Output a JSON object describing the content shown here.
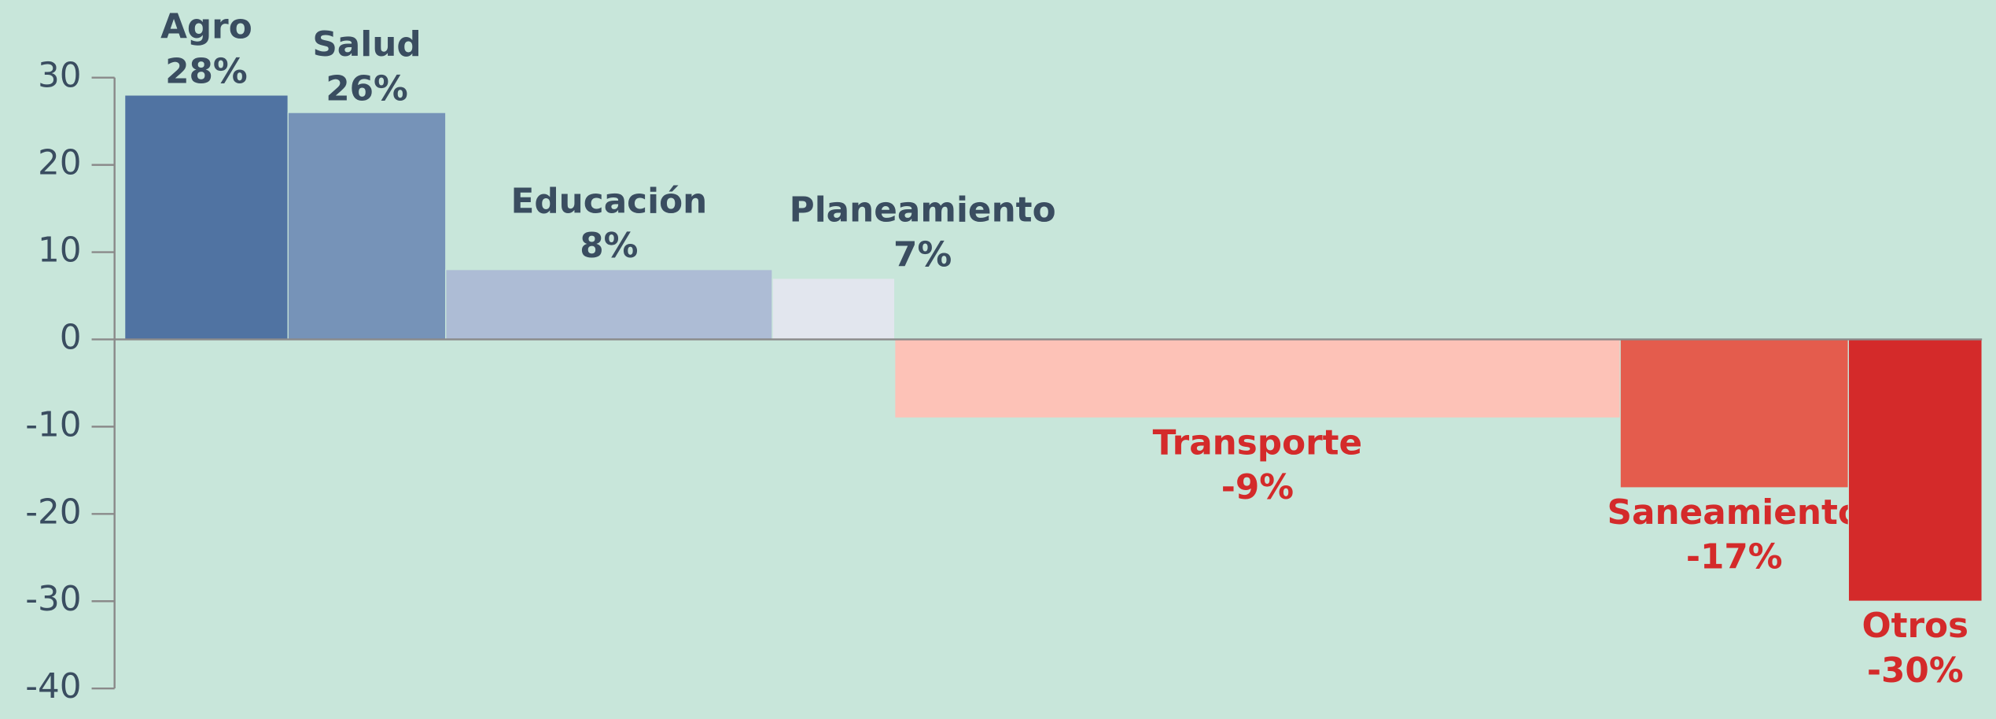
{
  "chart_data": {
    "type": "bar",
    "categories": [
      "Agro",
      "Salud",
      "Educación",
      "Planeamiento",
      "Transporte",
      "Saneamiento",
      "Otros"
    ],
    "values": [
      28,
      26,
      8,
      7,
      -9,
      -17,
      -30
    ],
    "value_labels": [
      "28%",
      "26%",
      "8%",
      "7%",
      "-9%",
      "-17%",
      "-30%"
    ],
    "widths": [
      8.8,
      8.5,
      17.6,
      6.6,
      39.1,
      12.3,
      7.2
    ],
    "colors": [
      "#5073a2",
      "#7693b8",
      "#adbcd5",
      "#e2e6ee",
      "#fdc2b7",
      "#e45c4d",
      "#d42a2a"
    ],
    "ylim": [
      -40,
      30
    ],
    "yticks": [
      30,
      20,
      10,
      0,
      -10,
      -20,
      -30,
      -40
    ]
  }
}
